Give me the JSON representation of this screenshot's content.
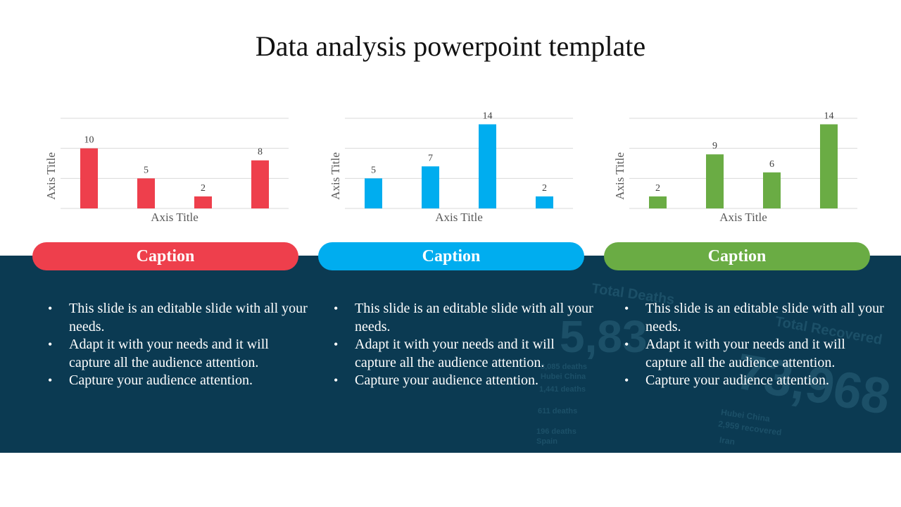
{
  "page": {
    "title": "Data analysis powerpoint template"
  },
  "panels": [
    {
      "caption": "Caption",
      "color": "#ee3f4c",
      "bullets": [
        "This slide is an editable slide with all your needs.",
        "Adapt it with your needs and it will capture all the audience attention.",
        "Capture your audience attention."
      ]
    },
    {
      "caption": "Caption",
      "color": "#00adef",
      "bullets": [
        "This slide is an editable slide with all your needs.",
        "Adapt it with your needs and it will capture all the audience attention.",
        "Capture your audience attention."
      ]
    },
    {
      "caption": "Caption",
      "color": "#6aac44",
      "bullets": [
        "This slide is an editable slide with all your needs.",
        "Adapt it with your needs and it will capture all the audience attention.",
        "Capture your audience attention."
      ]
    }
  ],
  "background_text": [
    "Total Deaths",
    "5,83",
    "Total Recovered",
    "73,968",
    "3,085 deaths",
    "Hubei China",
    "1,441 deaths",
    "611 deaths",
    "196 deaths",
    "Spain",
    "2,959 recovered",
    "Iran",
    "Hubei China"
  ],
  "chart_data": [
    {
      "type": "bar",
      "values": [
        10,
        5,
        2,
        8
      ],
      "xlabel": "Axis Title",
      "ylabel": "Axis Title",
      "ylim": [
        0,
        15
      ],
      "color": "#ee3f4c",
      "data_labels": true,
      "grid": true
    },
    {
      "type": "bar",
      "values": [
        5,
        7,
        14,
        2
      ],
      "xlabel": "Axis Title",
      "ylabel": "Axis Title",
      "ylim": [
        0,
        15
      ],
      "color": "#00adef",
      "data_labels": true,
      "grid": true
    },
    {
      "type": "bar",
      "values": [
        2,
        9,
        6,
        14
      ],
      "xlabel": "Axis Title",
      "ylabel": "Axis Title",
      "ylim": [
        0,
        15
      ],
      "color": "#6aac44",
      "data_labels": true,
      "grid": true
    }
  ]
}
